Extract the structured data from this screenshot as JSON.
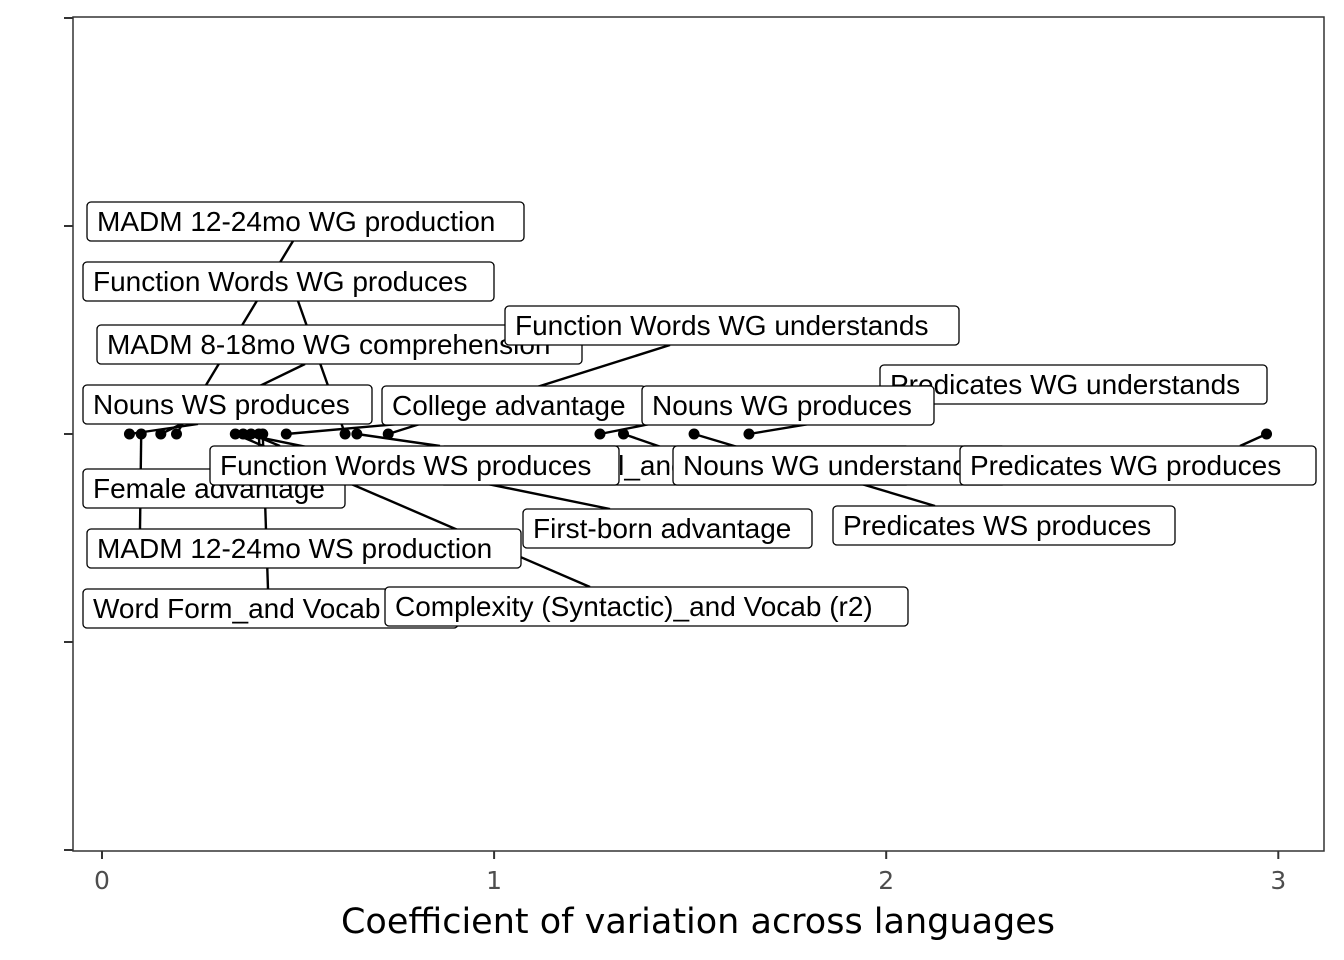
{
  "chart_data": {
    "type": "scatter",
    "title": "",
    "xlabel": "Coefficient of variation across languages",
    "ylabel": "",
    "xlim": [
      -0.07,
      3.12
    ],
    "ylim": [
      -1,
      1
    ],
    "xticks": [
      0,
      1,
      2,
      3
    ],
    "xtick_labels": [
      "0",
      "1",
      "2",
      "3"
    ],
    "yticks": [
      -1,
      -0.5,
      0,
      0.5,
      1
    ],
    "ytick_labels": [
      "",
      "",
      "",
      "",
      ""
    ],
    "grid": false,
    "legend": "none",
    "colors": {
      "point": "#000000",
      "panel_border": "#333333",
      "tick_label": "#4d4d4d",
      "label_border": "#000000",
      "label_fill": "#ffffff"
    },
    "points": [
      {
        "label": "MADM 12-24mo WG production",
        "x": 0.19,
        "y": 0
      },
      {
        "label": "Function Words WG produces",
        "x": 0.62,
        "y": 0
      },
      {
        "label": "MADM 8-18mo WG comprehension",
        "x": 0.15,
        "y": 0
      },
      {
        "label": "Function Words WG understands",
        "x": 0.73,
        "y": 0
      },
      {
        "label": "Predicates WG understands",
        "x": 1.65,
        "y": 0
      },
      {
        "label": "Nouns WS produces",
        "x": 0.07,
        "y": 0
      },
      {
        "label": "College advantage",
        "x": 0.47,
        "y": 0
      },
      {
        "label": "Nouns WG produces",
        "x": 1.27,
        "y": 0
      },
      {
        "label": "Function Words WS produces",
        "x": 0.38,
        "y": 0
      },
      {
        "label": "Morphological_and Vocab (r2)",
        "x": 0.65,
        "y": 0
      },
      {
        "label": "Nouns WG understands",
        "x": 1.33,
        "y": 0
      },
      {
        "label": "Predicates WG produces",
        "x": 2.97,
        "y": 0
      },
      {
        "label": "Female advantage",
        "x": 0.4,
        "y": 0
      },
      {
        "label": "First-born advantage",
        "x": 0.36,
        "y": 0
      },
      {
        "label": "Predicates WS produces",
        "x": 1.51,
        "y": 0
      },
      {
        "label": "MADM 12-24mo WS production",
        "x": 0.1,
        "y": 0
      },
      {
        "label": "Word Form_and Vocab (r2)",
        "x": 0.41,
        "y": 0
      },
      {
        "label": "Complexity (Syntactic)_and Vocab (r2)",
        "x": 0.34,
        "y": 0
      }
    ]
  }
}
